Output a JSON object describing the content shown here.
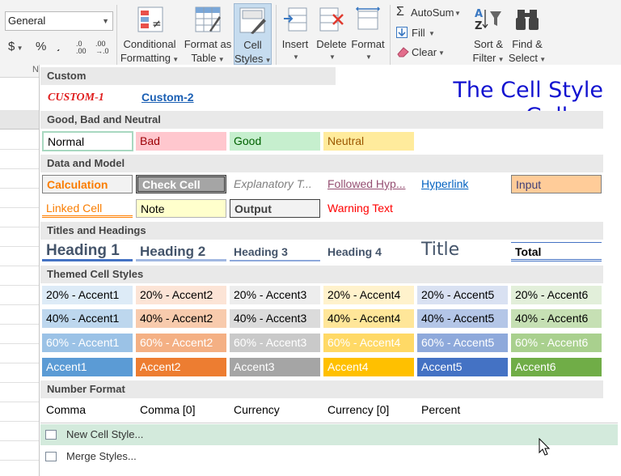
{
  "ribbon": {
    "number_format": "General",
    "currency_symbol": "$",
    "percent_symbol": "%",
    "comma_symbol": "͵",
    "increase_decimal": ".0\n.00",
    "decrease_decimal": ".00\n→.0",
    "number_group_partial": "N",
    "conditional_formatting": [
      "Conditional",
      "Formatting"
    ],
    "format_as_table": [
      "Format as",
      "Table"
    ],
    "cell_styles": [
      "Cell",
      "Styles"
    ],
    "insert": "Insert",
    "delete": "Delete",
    "format": "Format",
    "autosum": "AutoSum",
    "fill": "Fill",
    "clear": "Clear",
    "sort_filter": [
      "Sort &",
      "Filter"
    ],
    "find_select": [
      "Find &",
      "Select"
    ]
  },
  "gallery": {
    "title": "The Cell Style\nGallery",
    "sections": {
      "custom": "Custom",
      "good_bad": "Good, Bad and Neutral",
      "data_model": "Data and Model",
      "titles": "Titles and Headings",
      "themed": "Themed Cell Styles",
      "number": "Number Format"
    },
    "custom": [
      "CUSTOM-1",
      "Custom-2"
    ],
    "good_bad": [
      "Normal",
      "Bad",
      "Good",
      "Neutral"
    ],
    "data_model_row1": [
      "Calculation",
      "Check Cell",
      "Explanatory T...",
      "Followed Hyp...",
      "Hyperlink",
      "Input"
    ],
    "data_model_row2": [
      "Linked Cell",
      "Note",
      "Output",
      "Warning Text"
    ],
    "titles": [
      "Heading 1",
      "Heading 2",
      "Heading 3",
      "Heading 4",
      "Title",
      "Total"
    ],
    "themed_20": [
      "20% - Accent1",
      "20% - Accent2",
      "20% - Accent3",
      "20% - Accent4",
      "20% - Accent5",
      "20% - Accent6"
    ],
    "themed_40": [
      "40% - Accent1",
      "40% - Accent2",
      "40% - Accent3",
      "40% - Accent4",
      "40% - Accent5",
      "40% - Accent6"
    ],
    "themed_60": [
      "60% - Accent1",
      "60% - Accent2",
      "60% - Accent3",
      "60% - Accent4",
      "60% - Accent5",
      "60% - Accent6"
    ],
    "themed_100": [
      "Accent1",
      "Accent2",
      "Accent3",
      "Accent4",
      "Accent5",
      "Accent6"
    ],
    "number": [
      "Comma",
      "Comma [0]",
      "Currency",
      "Currency [0]",
      "Percent"
    ],
    "new_style": "New Cell Style...",
    "merge_styles": "Merge Styles..."
  },
  "colors": {
    "accent1": "#5b9bd5",
    "accent2": "#ed7d31",
    "accent3": "#a5a5a5",
    "accent4": "#ffc000",
    "accent5": "#4472c4",
    "accent6": "#70ad47",
    "title_text": "#1212d0",
    "hover_row": "#d3eadc"
  }
}
